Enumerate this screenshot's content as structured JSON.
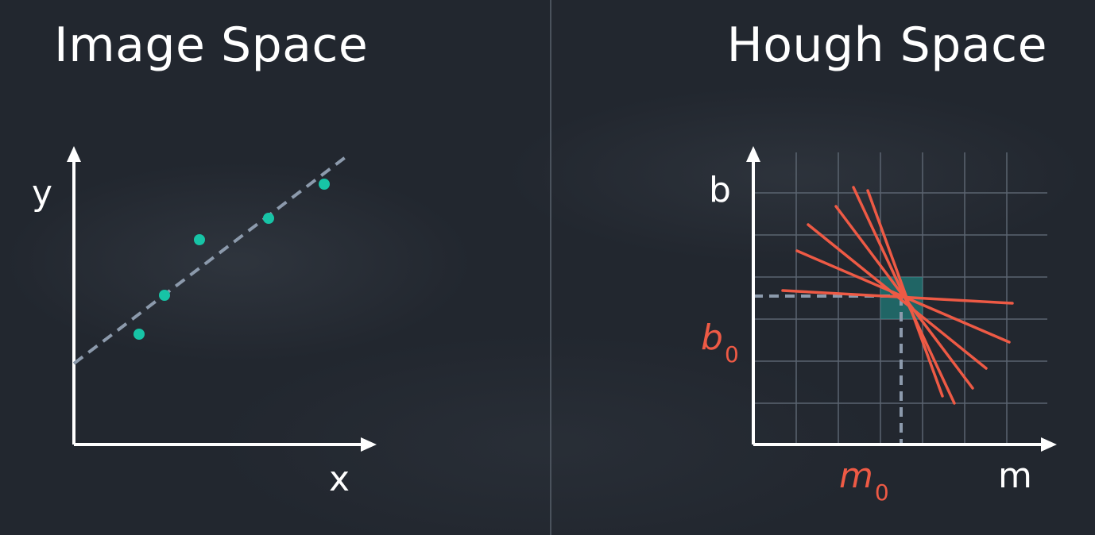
{
  "left_panel": {
    "title": "Image Space",
    "x_axis_label": "x",
    "y_axis_label": "y",
    "points_color": "#17c4a6",
    "fit_line_style": "dashed",
    "fit_line_color": "#8c9aac"
  },
  "right_panel": {
    "title": "Hough Space",
    "x_axis_label": "m",
    "y_axis_label": "b",
    "intersection_m_label": "m",
    "intersection_m_sub": "0",
    "intersection_b_label": "b",
    "intersection_b_sub": "0",
    "line_color": "#ee5a45",
    "highlight_color": "#1f8f8a",
    "grid_color": "#5b6470"
  }
}
